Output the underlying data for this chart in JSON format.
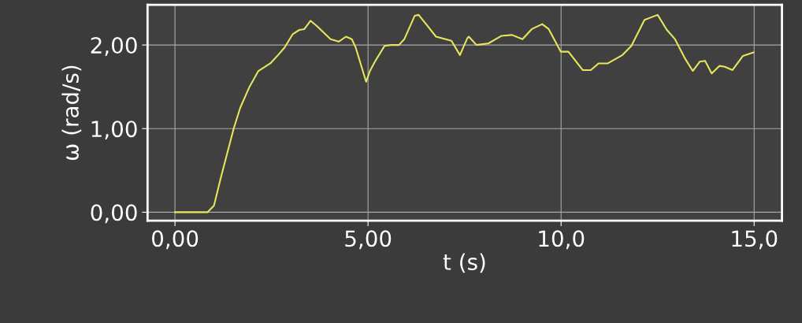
{
  "chart_data": {
    "type": "line",
    "xlabel": "t (s)",
    "ylabel": "ω (rad/s)",
    "xlim": [
      -0.71,
      15.72
    ],
    "ylim": [
      -0.1,
      2.48
    ],
    "xticks": [
      {
        "value": 0,
        "label": "0,00"
      },
      {
        "value": 5,
        "label": "5,00"
      },
      {
        "value": 10,
        "label": "10,0"
      },
      {
        "value": 15,
        "label": "15,0"
      }
    ],
    "yticks": [
      {
        "value": 0,
        "label": "0,00"
      },
      {
        "value": 1,
        "label": "1,00"
      },
      {
        "value": 2,
        "label": "2,00"
      }
    ],
    "grid": true,
    "marker": "none",
    "line_style": "solid",
    "series": [
      {
        "color": "#e6e65c",
        "x": [
          0,
          0.84,
          1.01,
          1.18,
          1.52,
          1.69,
          1.93,
          2.16,
          2.47,
          2.67,
          2.84,
          3.05,
          3.22,
          3.35,
          3.51,
          3.69,
          4.03,
          4.24,
          4.43,
          4.58,
          4.68,
          4.95,
          5.05,
          5.19,
          5.43,
          5.6,
          5.8,
          5.94,
          6.21,
          6.31,
          6.52,
          6.76,
          7.16,
          7.38,
          7.57,
          7.61,
          7.81,
          8.12,
          8.46,
          8.73,
          9.0,
          9.24,
          9.51,
          9.68,
          9.99,
          10.19,
          10.56,
          10.77,
          10.97,
          11.21,
          11.59,
          11.82,
          12.16,
          12.5,
          12.74,
          12.95,
          13.22,
          13.41,
          13.59,
          13.73,
          13.9,
          14.1,
          14.24,
          14.44,
          14.71,
          14.98
        ],
        "values": [
          0,
          0,
          0.08,
          0.4,
          1.0,
          1.25,
          1.5,
          1.69,
          1.78,
          1.88,
          1.97,
          2.13,
          2.18,
          2.19,
          2.29,
          2.22,
          2.07,
          2.04,
          2.1,
          2.07,
          1.97,
          1.56,
          1.69,
          1.81,
          1.99,
          2.0,
          2.0,
          2.07,
          2.35,
          2.36,
          2.24,
          2.1,
          2.05,
          1.88,
          2.08,
          2.1,
          2.0,
          2.02,
          2.11,
          2.12,
          2.07,
          2.19,
          2.25,
          2.19,
          1.92,
          1.92,
          1.7,
          1.7,
          1.78,
          1.78,
          1.88,
          1.99,
          2.3,
          2.36,
          2.18,
          2.07,
          1.83,
          1.69,
          1.8,
          1.81,
          1.66,
          1.75,
          1.74,
          1.7,
          1.87,
          1.91
        ]
      }
    ]
  }
}
